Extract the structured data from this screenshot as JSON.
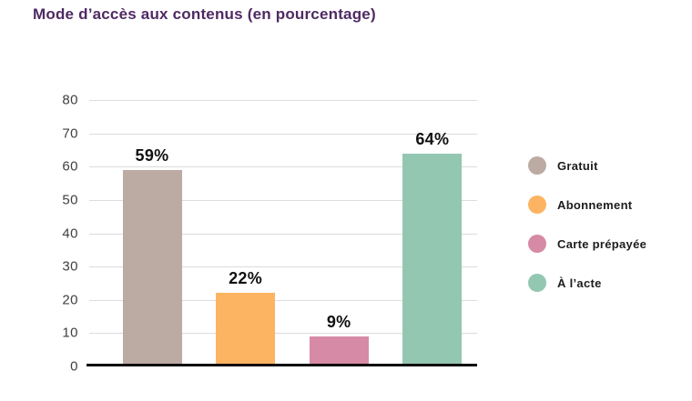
{
  "chart_data": {
    "type": "bar",
    "title": "Mode d’accès aux contenus (en pourcentage)",
    "categories": [
      "Gratuit",
      "Abonnement",
      "Carte prépayée",
      "À l’acte"
    ],
    "values": [
      59,
      22,
      9,
      64
    ],
    "value_labels": [
      "59%",
      "22%",
      "9%",
      "64%"
    ],
    "bar_colors": [
      "#bcaba3",
      "#fcb462",
      "#d78aa5",
      "#93c7b1"
    ],
    "xlabel": "",
    "ylabel": "",
    "ylim": [
      0,
      80
    ],
    "yticks": [
      0,
      10,
      20,
      30,
      40,
      50,
      60,
      70,
      80
    ],
    "grid": true,
    "legend_position": "right"
  },
  "legend": {
    "items": [
      {
        "label": "Gratuit",
        "color": "#bcaba3"
      },
      {
        "label": "Abonnement",
        "color": "#fcb462"
      },
      {
        "label": "Carte prépayée",
        "color": "#d78aa5"
      },
      {
        "label": "À l’acte",
        "color": "#93c7b1"
      }
    ]
  },
  "colors": {
    "title": "#4f2a63",
    "gridline": "#dcdcdc",
    "axis_line": "#0a0a0a",
    "tick_label": "#3f3f3f",
    "value_label": "#111111",
    "background": "#ffffff"
  }
}
